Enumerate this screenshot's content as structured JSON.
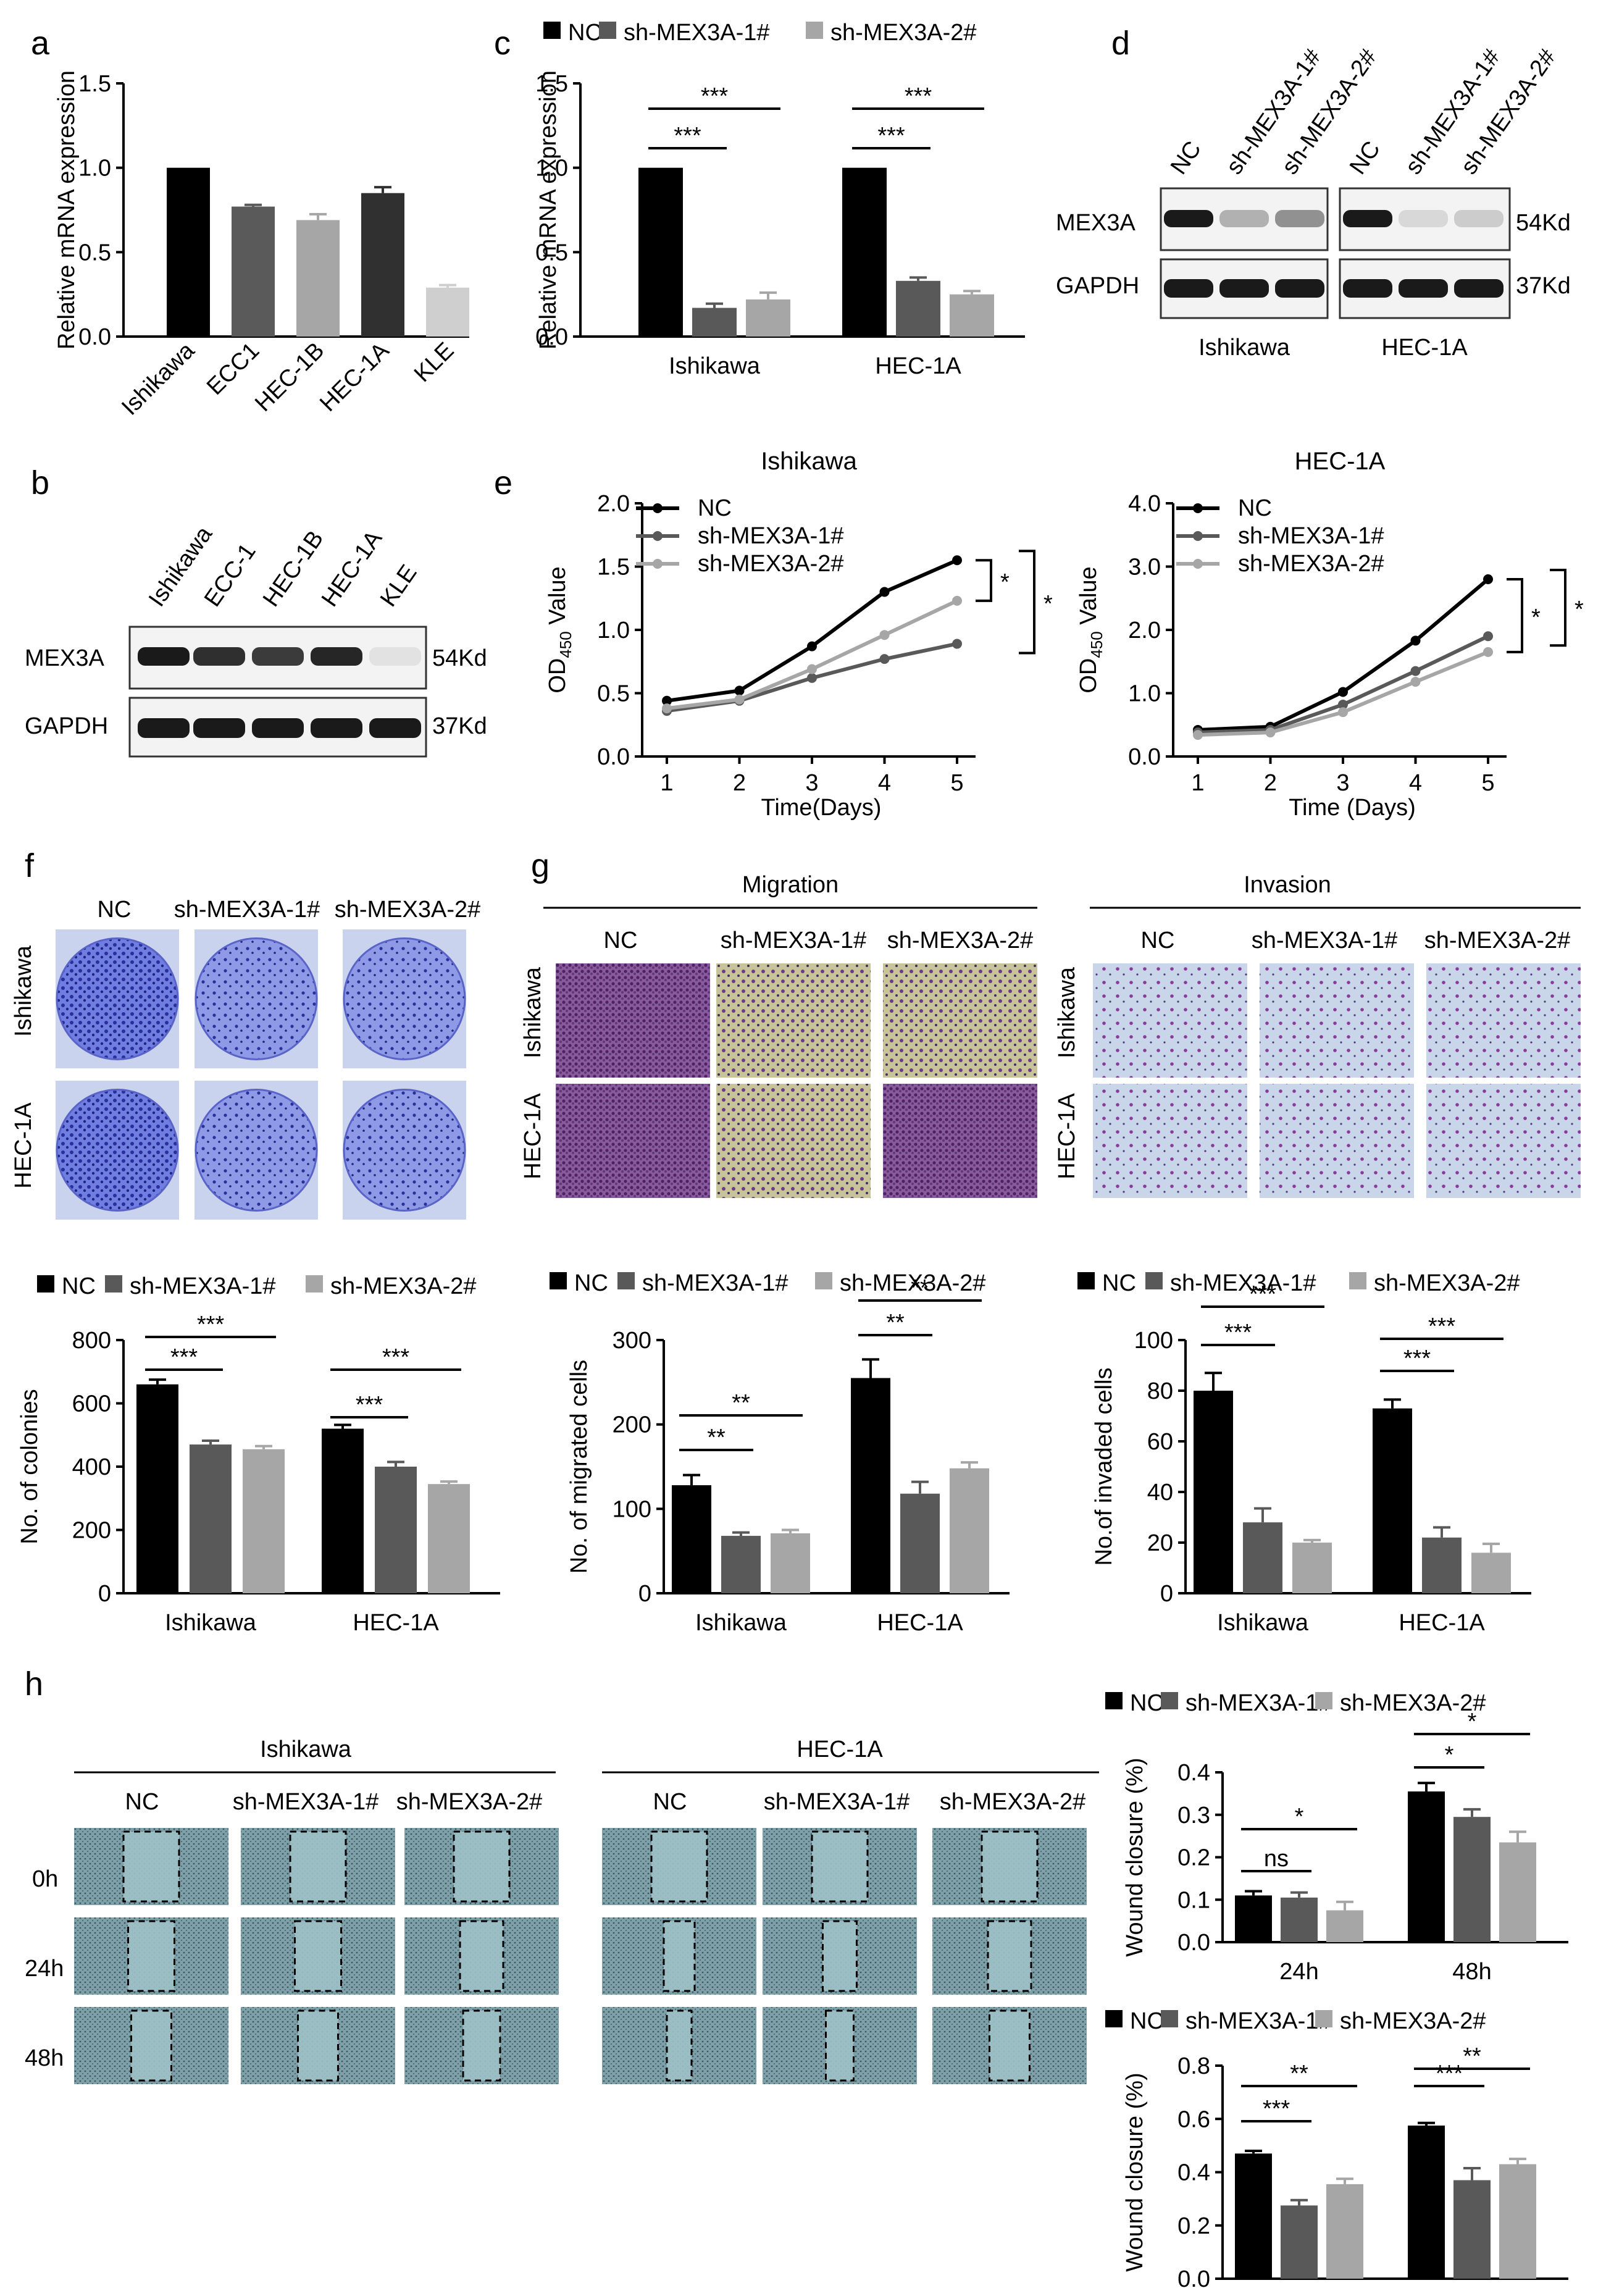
{
  "panel_letters": [
    "a",
    "b",
    "c",
    "d",
    "e",
    "f",
    "g",
    "h"
  ],
  "colors": {
    "NC": "#000000",
    "sh1": "#595959",
    "sh2": "#a6a6a6",
    "blot_band": "#1a1a1a",
    "crystal_violet": "#3b48c9",
    "transwell_purple": "#7a3a8a",
    "wound_teal": "#5f8f98"
  },
  "legend": {
    "NC": "NC",
    "sh1": "sh-MEX3A-1#",
    "sh2": "sh-MEX3A-2#"
  },
  "labels": {
    "MEX3A": "MEX3A",
    "GAPDH": "GAPDH",
    "kd54": "54Kd",
    "kd37": "37Kd",
    "Ishikawa": "Ishikawa",
    "HEC1A": "HEC-1A",
    "Migration": "Migration",
    "Invasion": "Invasion",
    "h0": "0h",
    "h24": "24h",
    "h48": "48h"
  },
  "blot_b": {
    "lanes": [
      "Ishikawa",
      "ECC-1",
      "HEC-1B",
      "HEC-1A",
      "KLE"
    ]
  },
  "blot_d": {
    "lanes": [
      "NC",
      "sh-MEX3A-1#",
      "sh-MEX3A-2#"
    ]
  },
  "chart_data": [
    {
      "id": "a",
      "type": "bar",
      "categories": [
        "Ishikawa",
        "ECC1",
        "HEC-1B",
        "HEC-1A",
        "KLE"
      ],
      "values": [
        1.0,
        0.77,
        0.69,
        0.85,
        0.29
      ],
      "errors": [
        0,
        0.01,
        0.035,
        0.035,
        0.015
      ],
      "ylabel": "Relative mRNA expression",
      "ylim": [
        0,
        1.5
      ],
      "yticks": [
        "0.0",
        "0.5",
        "1.0",
        "1.5"
      ]
    },
    {
      "id": "c",
      "type": "bar",
      "groups": [
        "Ishikawa",
        "HEC-1A"
      ],
      "series": [
        {
          "name": "NC",
          "values": [
            1.0,
            1.0
          ],
          "errors": [
            0,
            0
          ]
        },
        {
          "name": "sh-MEX3A-1#",
          "values": [
            0.17,
            0.33
          ],
          "errors": [
            0.025,
            0.02
          ]
        },
        {
          "name": "sh-MEX3A-2#",
          "values": [
            0.22,
            0.25
          ],
          "errors": [
            0.04,
            0.02
          ]
        }
      ],
      "ylabel": "Relative mRNA expression",
      "ylim": [
        0,
        1.5
      ],
      "yticks": [
        "0.0",
        "0.5",
        "1.0",
        "1.5"
      ],
      "significance": [
        "***",
        "***",
        "***",
        "***"
      ]
    },
    {
      "id": "e1",
      "type": "line",
      "title": "Ishikawa",
      "x": [
        1,
        2,
        3,
        4,
        5
      ],
      "series": [
        {
          "name": "NC",
          "values": [
            0.44,
            0.52,
            0.87,
            1.3,
            1.55
          ]
        },
        {
          "name": "sh-MEX3A-1#",
          "values": [
            0.36,
            0.44,
            0.62,
            0.77,
            0.89
          ]
        },
        {
          "name": "sh-MEX3A-2#",
          "values": [
            0.38,
            0.45,
            0.69,
            0.96,
            1.23
          ]
        }
      ],
      "xlabel": "Time(Days)",
      "ylabel": "OD450 Value",
      "ylabel_main": "OD",
      "ylabel_sub": "450",
      "ylabel_rest": " Value",
      "ylim": [
        0,
        2.0
      ],
      "yticks": [
        "0.0",
        "0.5",
        "1.0",
        "1.5",
        "2.0"
      ],
      "significance": [
        "*",
        "*"
      ]
    },
    {
      "id": "e2",
      "type": "line",
      "title": "HEC-1A",
      "x": [
        1,
        2,
        3,
        4,
        5
      ],
      "series": [
        {
          "name": "NC",
          "values": [
            0.42,
            0.47,
            1.02,
            1.83,
            2.8
          ]
        },
        {
          "name": "sh-MEX3A-1#",
          "values": [
            0.38,
            0.42,
            0.82,
            1.35,
            1.9
          ]
        },
        {
          "name": "sh-MEX3A-2#",
          "values": [
            0.34,
            0.38,
            0.7,
            1.18,
            1.65
          ]
        }
      ],
      "xlabel": "Time (Days)",
      "ylabel": "OD450 Value",
      "ylabel_main": "OD",
      "ylabel_sub": "450",
      "ylabel_rest": " Value",
      "ylim": [
        0,
        4.0
      ],
      "yticks": [
        "0.0",
        "1.0",
        "2.0",
        "3.0",
        "4.0"
      ],
      "significance": [
        "*",
        "*"
      ]
    },
    {
      "id": "f",
      "type": "bar",
      "groups": [
        "Ishikawa",
        "HEC-1A"
      ],
      "series": [
        {
          "name": "NC",
          "values": [
            660,
            520
          ],
          "errors": [
            15,
            12
          ]
        },
        {
          "name": "sh-MEX3A-1#",
          "values": [
            470,
            400
          ],
          "errors": [
            12,
            15
          ]
        },
        {
          "name": "sh-MEX3A-2#",
          "values": [
            455,
            345
          ],
          "errors": [
            10,
            8
          ]
        }
      ],
      "ylabel": "No. of colonies",
      "ylim": [
        0,
        800
      ],
      "yticks": [
        "0",
        "200",
        "400",
        "600",
        "800"
      ],
      "significance": [
        "***",
        "***",
        "***",
        "***"
      ]
    },
    {
      "id": "g1",
      "type": "bar",
      "groups": [
        "Ishikawa",
        "HEC-1A"
      ],
      "series": [
        {
          "name": "NC",
          "values": [
            128,
            255
          ],
          "errors": [
            12,
            22
          ]
        },
        {
          "name": "sh-MEX3A-1#",
          "values": [
            68,
            118
          ],
          "errors": [
            4,
            14
          ]
        },
        {
          "name": "sh-MEX3A-2#",
          "values": [
            71,
            148
          ],
          "errors": [
            4,
            7
          ]
        }
      ],
      "ylabel": "No. of migrated cells",
      "ylim": [
        0,
        300
      ],
      "yticks": [
        "0",
        "100",
        "200",
        "300"
      ],
      "significance": [
        "**",
        "**",
        "**",
        "**"
      ]
    },
    {
      "id": "g2",
      "type": "bar",
      "groups": [
        "Ishikawa",
        "HEC-1A"
      ],
      "series": [
        {
          "name": "NC",
          "values": [
            80,
            73
          ],
          "errors": [
            7,
            3.5
          ]
        },
        {
          "name": "sh-MEX3A-1#",
          "values": [
            28,
            22
          ],
          "errors": [
            5.5,
            4
          ]
        },
        {
          "name": "sh-MEX3A-2#",
          "values": [
            20,
            16
          ],
          "errors": [
            1,
            3.5
          ]
        }
      ],
      "ylabel": "No.of invaded cells",
      "ylim": [
        0,
        100
      ],
      "yticks": [
        "0",
        "20",
        "40",
        "60",
        "80",
        "100"
      ],
      "significance": [
        "***",
        "***",
        "***",
        "***"
      ]
    },
    {
      "id": "h1",
      "type": "bar",
      "groups": [
        "24h",
        "48h"
      ],
      "series": [
        {
          "name": "NC",
          "values": [
            0.11,
            0.355
          ],
          "errors": [
            0.01,
            0.02
          ]
        },
        {
          "name": "sh-MEX3A-1#",
          "values": [
            0.105,
            0.295
          ],
          "errors": [
            0.012,
            0.018
          ]
        },
        {
          "name": "sh-MEX3A-2#",
          "values": [
            0.075,
            0.235
          ],
          "errors": [
            0.02,
            0.025
          ]
        }
      ],
      "ylabel": "Wound closure (%)",
      "ylim": [
        0,
        0.4
      ],
      "yticks": [
        "0.0",
        "0.1",
        "0.2",
        "0.3",
        "0.4"
      ],
      "significance": [
        "ns",
        "*",
        "*",
        "*"
      ]
    },
    {
      "id": "h2",
      "type": "bar",
      "groups": [
        "24h",
        "48h"
      ],
      "series": [
        {
          "name": "NC",
          "values": [
            0.47,
            0.575
          ],
          "errors": [
            0.01,
            0.01
          ]
        },
        {
          "name": "sh-MEX3A-1#",
          "values": [
            0.275,
            0.37
          ],
          "errors": [
            0.02,
            0.045
          ]
        },
        {
          "name": "sh-MEX3A-2#",
          "values": [
            0.355,
            0.43
          ],
          "errors": [
            0.02,
            0.02
          ]
        }
      ],
      "ylabel": "Wound closure (%)",
      "ylim": [
        0,
        0.8
      ],
      "yticks": [
        "0.0",
        "0.2",
        "0.4",
        "0.6",
        "0.8"
      ],
      "significance": [
        "***",
        "**",
        "***",
        "**"
      ]
    }
  ]
}
